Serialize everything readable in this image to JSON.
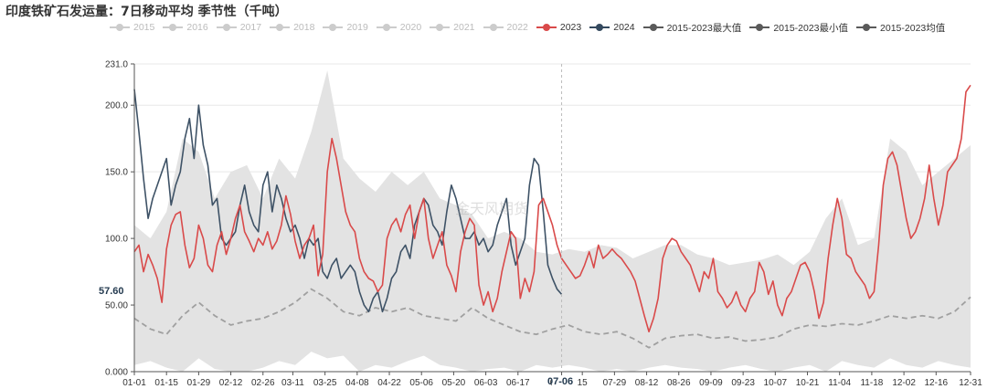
{
  "title": "印度铁矿石发运量：7日移动平均 季节性（千吨）",
  "legend": [
    {
      "label": "2015",
      "color": "#cccccc"
    },
    {
      "label": "2016",
      "color": "#cccccc"
    },
    {
      "label": "2017",
      "color": "#cccccc"
    },
    {
      "label": "2018",
      "color": "#cccccc"
    },
    {
      "label": "2019",
      "color": "#cccccc"
    },
    {
      "label": "2020",
      "color": "#cccccc"
    },
    {
      "label": "2021",
      "color": "#cccccc"
    },
    {
      "label": "2022",
      "color": "#cccccc"
    },
    {
      "label": "2023",
      "color": "#d94a4a"
    },
    {
      "label": "2024",
      "color": "#34495e"
    },
    {
      "label": "2015-2023最大值",
      "color": "#5a5a5a"
    },
    {
      "label": "2015-2023最小值",
      "color": "#5a5a5a"
    },
    {
      "label": "2015-2023均值",
      "color": "#5a5a5a"
    }
  ],
  "cursor_x_label": "07-06",
  "cursor_y_label": "57.60",
  "watermark": "金天风期货",
  "chart_data": {
    "type": "line",
    "x_tick_labels": [
      "01-01",
      "01-15",
      "01-29",
      "02-12",
      "02-26",
      "03-11",
      "03-25",
      "04-08",
      "04-22",
      "05-06",
      "05-20",
      "06-03",
      "06-17",
      "07-06",
      "15",
      "07-29",
      "08-12",
      "08-26",
      "09-09",
      "09-23",
      "10-07",
      "10-21",
      "11-04",
      "11-18",
      "12-02",
      "12-16",
      "12-31"
    ],
    "x_tick_days": [
      1,
      15,
      29,
      43,
      57,
      70,
      84,
      98,
      112,
      126,
      140,
      154,
      168,
      187,
      196,
      210,
      224,
      238,
      252,
      266,
      280,
      294,
      308,
      322,
      336,
      350,
      365
    ],
    "y_tick_labels": [
      "231.0",
      "200.0",
      "150.0",
      "100.0",
      "50.00",
      "0.000"
    ],
    "ylim": [
      0,
      231
    ],
    "xlim_days": [
      1,
      365
    ],
    "colors": {
      "y2023": "#d94a4a",
      "y2024": "#3e5266",
      "band": "#e3e3e3",
      "mean": "#a0a0a0"
    },
    "series": [
      {
        "name": "2023",
        "color": "#d94a4a",
        "x": [
          1,
          3,
          5,
          7,
          9,
          11,
          13,
          15,
          17,
          19,
          21,
          23,
          25,
          27,
          29,
          31,
          33,
          35,
          37,
          39,
          41,
          43,
          45,
          47,
          49,
          51,
          53,
          55,
          57,
          59,
          61,
          63,
          65,
          67,
          69,
          71,
          73,
          75,
          77,
          79,
          81,
          83,
          85,
          87,
          89,
          91,
          93,
          95,
          97,
          99,
          101,
          103,
          105,
          107,
          109,
          111,
          113,
          115,
          117,
          119,
          121,
          123,
          125,
          127,
          129,
          131,
          133,
          135,
          137,
          139,
          141,
          143,
          145,
          147,
          149,
          151,
          153,
          155,
          157,
          159,
          161,
          163,
          165,
          167,
          169,
          171,
          173,
          175,
          177,
          179,
          181,
          183,
          185,
          187,
          189,
          191,
          193,
          195,
          197,
          199,
          201,
          203,
          205,
          207,
          209,
          211,
          213,
          215,
          217,
          219,
          221,
          223,
          225,
          227,
          229,
          231,
          233,
          235,
          237,
          239,
          241,
          243,
          245,
          247,
          249,
          251,
          253,
          255,
          257,
          259,
          261,
          263,
          265,
          267,
          269,
          271,
          273,
          275,
          277,
          279,
          281,
          283,
          285,
          287,
          289,
          291,
          293,
          295,
          297,
          299,
          301,
          303,
          305,
          307,
          309,
          311,
          313,
          315,
          317,
          319,
          321,
          323,
          325,
          327,
          329,
          331,
          333,
          335,
          337,
          339,
          341,
          343,
          345,
          347,
          349,
          351,
          353,
          355,
          357,
          359,
          361,
          363,
          365
        ],
        "values": [
          90,
          95,
          75,
          88,
          80,
          70,
          52,
          92,
          110,
          118,
          120,
          95,
          78,
          85,
          110,
          100,
          80,
          75,
          95,
          105,
          88,
          100,
          115,
          125,
          105,
          98,
          90,
          100,
          95,
          105,
          92,
          98,
          110,
          132,
          118,
          98,
          85,
          95,
          100,
          110,
          72,
          88,
          150,
          175,
          160,
          140,
          120,
          110,
          105,
          85,
          75,
          70,
          68,
          60,
          65,
          100,
          110,
          115,
          105,
          118,
          125,
          100,
          120,
          130,
          100,
          85,
          95,
          105,
          80,
          72,
          60,
          90,
          105,
          115,
          110,
          65,
          50,
          60,
          45,
          55,
          75,
          90,
          105,
          100,
          55,
          70,
          60,
          75,
          125,
          130,
          120,
          110,
          95,
          85,
          80,
          75,
          70,
          72,
          80,
          90,
          78,
          95,
          85,
          88,
          92,
          88,
          85,
          80,
          75,
          68,
          55,
          42,
          30,
          40,
          55,
          85,
          95,
          100,
          98,
          90,
          85,
          80,
          70,
          60,
          75,
          70,
          85,
          60,
          55,
          48,
          52,
          60,
          50,
          45,
          55,
          60,
          82,
          75,
          58,
          68,
          50,
          42,
          55,
          60,
          70,
          80,
          82,
          75,
          60,
          40,
          52,
          85,
          110,
          130,
          115,
          88,
          85,
          75,
          70,
          65,
          55,
          60,
          95,
          140,
          160,
          165,
          155,
          135,
          115,
          100,
          105,
          115,
          130,
          155,
          130,
          110,
          125,
          150,
          155,
          160,
          175,
          210,
          215
        ]
      },
      {
        "name": "2024",
        "color": "#3e5266",
        "x": [
          1,
          3,
          5,
          7,
          9,
          11,
          13,
          15,
          17,
          19,
          21,
          23,
          25,
          27,
          29,
          31,
          33,
          35,
          37,
          39,
          41,
          43,
          45,
          47,
          49,
          51,
          53,
          55,
          57,
          59,
          61,
          63,
          65,
          67,
          69,
          71,
          73,
          75,
          77,
          79,
          81,
          83,
          85,
          87,
          89,
          91,
          93,
          95,
          97,
          99,
          101,
          103,
          105,
          107,
          109,
          111,
          113,
          115,
          117,
          119,
          121,
          123,
          125,
          127,
          129,
          131,
          133,
          135,
          137,
          139,
          141,
          143,
          145,
          147,
          149,
          151,
          153,
          155,
          157,
          159,
          161,
          163,
          165,
          167,
          169,
          171,
          173,
          175,
          177,
          179,
          181,
          183,
          185,
          187
        ],
        "values": [
          212,
          180,
          145,
          115,
          130,
          140,
          150,
          160,
          125,
          140,
          150,
          175,
          190,
          160,
          200,
          170,
          155,
          125,
          130,
          100,
          95,
          100,
          105,
          125,
          140,
          120,
          110,
          105,
          140,
          150,
          120,
          140,
          130,
          115,
          105,
          110,
          100,
          85,
          100,
          95,
          100,
          75,
          70,
          80,
          85,
          70,
          75,
          80,
          75,
          60,
          50,
          45,
          55,
          60,
          45,
          55,
          70,
          75,
          90,
          95,
          85,
          110,
          120,
          130,
          125,
          110,
          105,
          95,
          120,
          140,
          130,
          115,
          100,
          100,
          105,
          95,
          100,
          90,
          95,
          110,
          120,
          130,
          95,
          80,
          90,
          100,
          140,
          160,
          155,
          120,
          80,
          70,
          62,
          58
        ]
      },
      {
        "name": "2015-2023均值",
        "color": "#a0a0a0",
        "x": [
          1,
          8,
          15,
          22,
          29,
          36,
          43,
          50,
          57,
          64,
          71,
          78,
          85,
          92,
          99,
          106,
          113,
          120,
          127,
          134,
          141,
          148,
          155,
          162,
          169,
          176,
          183,
          190,
          197,
          204,
          211,
          218,
          225,
          232,
          239,
          246,
          253,
          260,
          267,
          274,
          281,
          288,
          295,
          302,
          309,
          316,
          323,
          330,
          337,
          344,
          351,
          358,
          365
        ],
        "values": [
          40,
          32,
          28,
          42,
          52,
          42,
          35,
          38,
          40,
          45,
          52,
          62,
          55,
          45,
          42,
          48,
          45,
          48,
          42,
          40,
          38,
          48,
          40,
          35,
          30,
          28,
          32,
          35,
          30,
          28,
          30,
          25,
          18,
          25,
          27,
          28,
          25,
          26,
          23,
          24,
          26,
          32,
          35,
          34,
          36,
          35,
          38,
          42,
          40,
          42,
          40,
          45,
          56
        ]
      },
      {
        "name": "2015-2023最大值",
        "color": "#e3e3e3",
        "x": [
          1,
          8,
          15,
          22,
          29,
          36,
          43,
          50,
          57,
          64,
          71,
          78,
          85,
          92,
          99,
          106,
          113,
          120,
          127,
          134,
          141,
          148,
          155,
          162,
          169,
          176,
          183,
          190,
          197,
          204,
          211,
          218,
          225,
          232,
          239,
          246,
          253,
          260,
          267,
          274,
          281,
          288,
          295,
          302,
          309,
          316,
          323,
          330,
          337,
          344,
          351,
          358,
          365
        ],
        "values": [
          110,
          100,
          120,
          175,
          165,
          130,
          150,
          155,
          130,
          160,
          145,
          180,
          226,
          160,
          145,
          135,
          150,
          140,
          150,
          130,
          125,
          118,
          100,
          105,
          100,
          90,
          88,
          92,
          90,
          95,
          93,
          85,
          90,
          95,
          95,
          88,
          85,
          80,
          82,
          84,
          88,
          80,
          90,
          115,
          130,
          95,
          100,
          175,
          165,
          140,
          150,
          160,
          170
        ]
      },
      {
        "name": "2015-2023最小值",
        "color": "#ffffff",
        "x": [
          1,
          8,
          15,
          22,
          29,
          36,
          43,
          50,
          57,
          64,
          71,
          78,
          85,
          92,
          99,
          106,
          113,
          120,
          127,
          134,
          141,
          148,
          155,
          162,
          169,
          176,
          183,
          190,
          197,
          204,
          211,
          218,
          225,
          232,
          239,
          246,
          253,
          260,
          267,
          274,
          281,
          288,
          295,
          302,
          309,
          316,
          323,
          330,
          337,
          344,
          351,
          358,
          365
        ],
        "values": [
          5,
          8,
          3,
          0,
          10,
          2,
          0,
          0,
          3,
          8,
          5,
          15,
          10,
          12,
          0,
          5,
          3,
          8,
          12,
          5,
          3,
          0,
          2,
          3,
          0,
          5,
          3,
          5,
          3,
          0,
          2,
          0,
          3,
          5,
          3,
          2,
          0,
          3,
          5,
          2,
          0,
          3,
          5,
          0,
          8,
          5,
          3,
          10,
          5,
          3,
          8,
          5,
          3
        ]
      }
    ]
  }
}
